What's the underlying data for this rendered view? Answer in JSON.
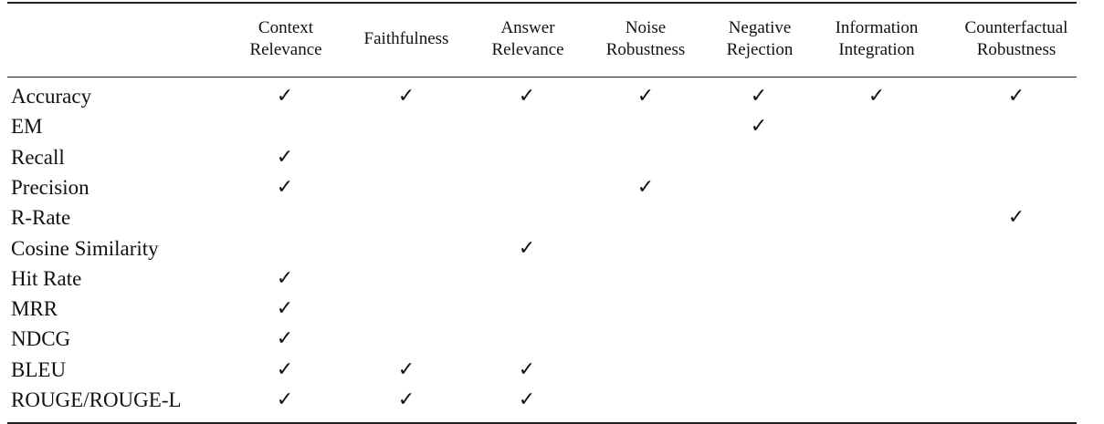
{
  "table": {
    "columns": [
      "Context\nRelevance",
      "Faithfulness",
      "Answer\nRelevance",
      "Noise\nRobustness",
      "Negative\nRejection",
      "Information\nIntegration",
      "Counterfactual\nRobustness"
    ],
    "check_glyph": "✓",
    "rows": [
      {
        "label": "Accuracy",
        "checks": [
          true,
          true,
          true,
          true,
          true,
          true,
          true
        ]
      },
      {
        "label": "EM",
        "checks": [
          false,
          false,
          false,
          false,
          true,
          false,
          false
        ]
      },
      {
        "label": "Recall",
        "checks": [
          true,
          false,
          false,
          false,
          false,
          false,
          false
        ]
      },
      {
        "label": "Precision",
        "checks": [
          true,
          false,
          false,
          true,
          false,
          false,
          false
        ]
      },
      {
        "label": "R-Rate",
        "checks": [
          false,
          false,
          false,
          false,
          false,
          false,
          true
        ]
      },
      {
        "label": "Cosine Similarity",
        "checks": [
          false,
          false,
          true,
          false,
          false,
          false,
          false
        ]
      },
      {
        "label": "Hit Rate",
        "checks": [
          true,
          false,
          false,
          false,
          false,
          false,
          false
        ]
      },
      {
        "label": "MRR",
        "checks": [
          true,
          false,
          false,
          false,
          false,
          false,
          false
        ]
      },
      {
        "label": "NDCG",
        "checks": [
          true,
          false,
          false,
          false,
          false,
          false,
          false
        ]
      },
      {
        "label": "BLEU",
        "checks": [
          true,
          true,
          true,
          false,
          false,
          false,
          false
        ]
      },
      {
        "label": "ROUGE/ROUGE-L",
        "checks": [
          true,
          true,
          true,
          false,
          false,
          false,
          false
        ]
      }
    ]
  }
}
